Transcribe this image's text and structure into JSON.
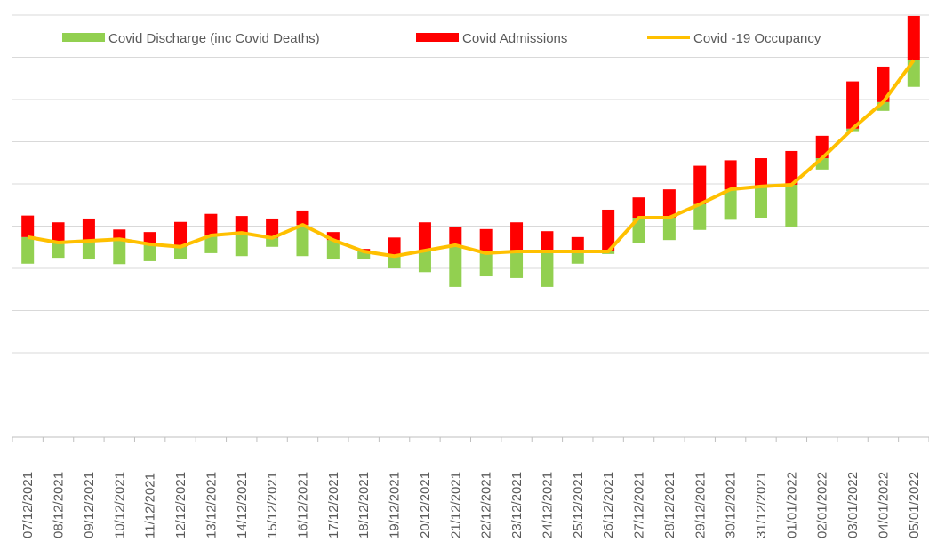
{
  "chart_data": {
    "type": "bar",
    "categories": [
      "07/12/2021",
      "08/12/2021",
      "09/12/2021",
      "10/12/2021",
      "11/12/2021",
      "12/12/2021",
      "13/12/2021",
      "14/12/2021",
      "15/12/2021",
      "16/12/2021",
      "17/12/2021",
      "18/12/2021",
      "19/12/2021",
      "20/12/2021",
      "21/12/2021",
      "22/12/2021",
      "23/12/2021",
      "24/12/2021",
      "25/12/2021",
      "26/12/2021",
      "27/12/2021",
      "28/12/2021",
      "29/12/2021",
      "30/12/2021",
      "31/12/2021",
      "01/01/2022",
      "02/01/2022",
      "03/01/2022",
      "04/01/2022",
      "05/01/2022"
    ],
    "series": [
      {
        "name": "Covid Discharge (inc Covid Deaths)",
        "color": "#92d050",
        "role": "below",
        "values": [
          6.3,
          3.6,
          4.4,
          5.9,
          4.0,
          2.9,
          4.2,
          5.5,
          2.1,
          7.4,
          4.6,
          1.9,
          2.9,
          5.1,
          9.9,
          5.5,
          6.3,
          8.4,
          2.9,
          0.6,
          5.9,
          5.3,
          6.1,
          7.2,
          7.4,
          9.9,
          2.7,
          0.6,
          2.1,
          6.3
        ]
      },
      {
        "name": "Covid Admissions",
        "color": "#ff0000",
        "role": "above",
        "values": [
          5.1,
          4.8,
          5.3,
          2.3,
          2.9,
          5.9,
          5.1,
          4.0,
          4.6,
          3.4,
          1.9,
          0.6,
          4.4,
          6.7,
          4.2,
          5.7,
          6.9,
          4.8,
          3.4,
          9.9,
          4.8,
          6.7,
          9.1,
          6.9,
          6.7,
          8.0,
          5.3,
          11.2,
          8.4,
          10.5
        ]
      },
      {
        "name": "Covid -19 Occupancy",
        "color": "#ffc000",
        "type": "line",
        "values": [
          47.4,
          46.1,
          46.5,
          46.9,
          45.7,
          45.1,
          47.8,
          48.4,
          47.2,
          50.3,
          46.7,
          44.0,
          42.9,
          44.2,
          45.5,
          43.6,
          44.0,
          44.0,
          44.0,
          44.0,
          52.0,
          52.0,
          55.2,
          58.7,
          59.4,
          59.8,
          66.1,
          73.1,
          79.4,
          89.3
        ]
      }
    ],
    "ylim": [
      0,
      100
    ],
    "yticks": [
      0,
      10,
      20,
      30,
      40,
      50,
      60,
      70,
      80,
      90,
      100
    ],
    "grid": true,
    "legend": "top"
  }
}
